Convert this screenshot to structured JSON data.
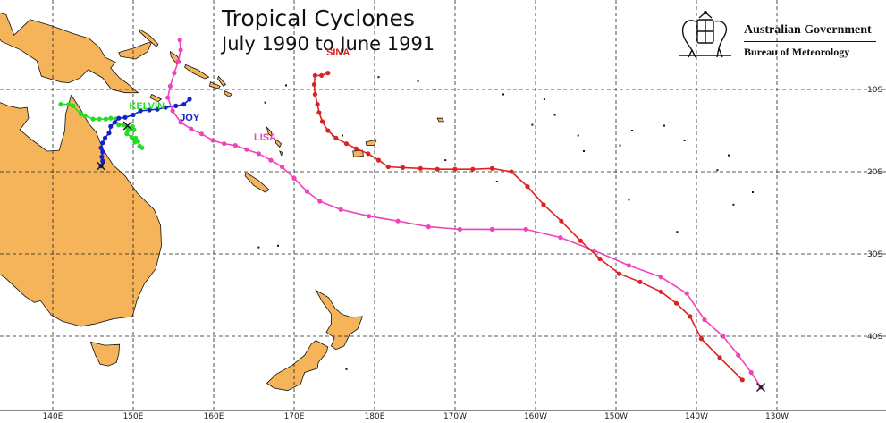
{
  "title": {
    "main": "Tropical Cyclones",
    "sub": "July 1990 to June 1991"
  },
  "logo": {
    "line1": "Australian Government",
    "line2": "Bureau of Meteorology"
  },
  "map": {
    "lon_range": [
      135,
      228
    ],
    "lat_range": [
      -48,
      -1
    ],
    "land_color": "#f5b35a",
    "grid_style": "dashed",
    "lat_labels": [
      {
        "lat": -10,
        "label": "10S"
      },
      {
        "lat": -20,
        "label": "20S"
      },
      {
        "lat": -30,
        "label": "30S"
      },
      {
        "lat": -40,
        "label": "40S"
      }
    ],
    "lon_labels": [
      {
        "lon": 140,
        "label": "140E"
      },
      {
        "lon": 150,
        "label": "150E"
      },
      {
        "lon": 160,
        "label": "160E"
      },
      {
        "lon": 170,
        "label": "170E"
      },
      {
        "lon": 180,
        "label": "180E"
      },
      {
        "lon": 190,
        "label": "170W"
      },
      {
        "lon": 200,
        "label": "160W"
      },
      {
        "lon": 210,
        "label": "150W"
      },
      {
        "lon": 220,
        "label": "140W"
      },
      {
        "lon": 230,
        "label": "130W"
      }
    ]
  },
  "cyclones": [
    {
      "name": "KELVIN",
      "color": "#22dd22",
      "label_pos": [
        149.5,
        -12.2
      ],
      "dissipation": null,
      "track": [
        [
          141.0,
          -11.8
        ],
        [
          142.0,
          -11.8
        ],
        [
          142.5,
          -12.0
        ],
        [
          143.5,
          -13.0
        ],
        [
          144.0,
          -13.2
        ],
        [
          145.0,
          -13.6
        ],
        [
          145.8,
          -13.6
        ],
        [
          146.6,
          -13.6
        ],
        [
          147.2,
          -13.5
        ],
        [
          147.8,
          -13.6
        ],
        [
          148.2,
          -14.3
        ],
        [
          148.8,
          -14.3
        ],
        [
          149.3,
          -14.6
        ],
        [
          149.9,
          -14.5
        ],
        [
          150.1,
          -14.9
        ],
        [
          149.3,
          -15.0
        ],
        [
          149.2,
          -15.4
        ],
        [
          149.8,
          -15.8
        ],
        [
          150.3,
          -15.9
        ],
        [
          150.2,
          -16.4
        ],
        [
          150.6,
          -16.3
        ],
        [
          150.8,
          -16.9
        ],
        [
          151.1,
          -17.1
        ]
      ]
    },
    {
      "name": "JOY",
      "color": "#1122cc",
      "label_pos": [
        155.8,
        -13.6
      ],
      "dissipation": [
        146.0,
        -19.3
      ],
      "track": [
        [
          157.0,
          -11.2
        ],
        [
          156.3,
          -11.8
        ],
        [
          155.3,
          -12.0
        ],
        [
          154.0,
          -12.2
        ],
        [
          153.0,
          -12.4
        ],
        [
          152.0,
          -12.5
        ],
        [
          150.9,
          -12.6
        ],
        [
          150.0,
          -13.1
        ],
        [
          149.0,
          -13.4
        ],
        [
          148.2,
          -13.5
        ],
        [
          147.7,
          -14.0
        ],
        [
          147.2,
          -14.5
        ],
        [
          147.0,
          -15.3
        ],
        [
          146.5,
          -15.9
        ],
        [
          146.2,
          -16.5
        ],
        [
          146.0,
          -17.1
        ],
        [
          146.2,
          -17.6
        ],
        [
          146.1,
          -18.2
        ],
        [
          146.2,
          -18.7
        ],
        [
          146.0,
          -19.3
        ]
      ]
    },
    {
      "name": "LISA",
      "color": "#ee44bb",
      "label_pos": [
        165.0,
        -16.0
      ],
      "dissipation": [
        228.0,
        -46.2
      ],
      "track": [
        [
          155.8,
          -4.0
        ],
        [
          155.9,
          -5.2
        ],
        [
          155.6,
          -6.6
        ],
        [
          155.1,
          -8.0
        ],
        [
          154.6,
          -9.6
        ],
        [
          154.3,
          -11.0
        ],
        [
          154.9,
          -12.6
        ],
        [
          155.9,
          -14.0
        ],
        [
          157.2,
          -14.8
        ],
        [
          158.5,
          -15.4
        ],
        [
          159.9,
          -16.2
        ],
        [
          161.3,
          -16.6
        ],
        [
          162.7,
          -16.8
        ],
        [
          164.1,
          -17.3
        ],
        [
          165.6,
          -17.8
        ],
        [
          167.1,
          -18.6
        ],
        [
          168.5,
          -19.4
        ],
        [
          170.0,
          -20.8
        ],
        [
          171.6,
          -22.4
        ],
        [
          173.2,
          -23.6
        ],
        [
          175.8,
          -24.6
        ],
        [
          179.3,
          -25.4
        ],
        [
          182.9,
          -26.0
        ],
        [
          186.7,
          -26.7
        ],
        [
          190.6,
          -27.0
        ],
        [
          194.6,
          -27.0
        ],
        [
          198.8,
          -27.0
        ],
        [
          203.1,
          -28.0
        ],
        [
          207.3,
          -29.6
        ],
        [
          211.6,
          -31.4
        ],
        [
          215.6,
          -32.8
        ],
        [
          218.8,
          -34.8
        ],
        [
          221.0,
          -38.0
        ],
        [
          223.3,
          -40.0
        ],
        [
          225.2,
          -42.3
        ],
        [
          226.8,
          -44.4
        ],
        [
          228.0,
          -46.2
        ]
      ]
    },
    {
      "name": "SINA",
      "color": "#dd2222",
      "label_pos": [
        174.0,
        -5.6
      ],
      "dissipation": null,
      "track": [
        [
          174.2,
          -8.0
        ],
        [
          173.4,
          -8.3
        ],
        [
          172.6,
          -8.3
        ],
        [
          172.5,
          -9.4
        ],
        [
          172.6,
          -10.6
        ],
        [
          172.9,
          -11.8
        ],
        [
          173.1,
          -12.8
        ],
        [
          173.5,
          -13.9
        ],
        [
          174.2,
          -15.0
        ],
        [
          175.2,
          -15.9
        ],
        [
          176.5,
          -16.6
        ],
        [
          177.7,
          -17.2
        ],
        [
          179.2,
          -17.8
        ],
        [
          180.5,
          -18.6
        ],
        [
          181.7,
          -19.4
        ],
        [
          183.5,
          -19.5
        ],
        [
          185.7,
          -19.6
        ],
        [
          187.8,
          -19.7
        ],
        [
          190.0,
          -19.7
        ],
        [
          192.2,
          -19.7
        ],
        [
          194.6,
          -19.6
        ],
        [
          197.0,
          -20.0
        ],
        [
          199.0,
          -21.8
        ],
        [
          201.0,
          -24.0
        ],
        [
          203.2,
          -26.0
        ],
        [
          205.6,
          -28.4
        ],
        [
          208.0,
          -30.6
        ],
        [
          210.4,
          -32.4
        ],
        [
          213.0,
          -33.4
        ],
        [
          215.6,
          -34.6
        ],
        [
          217.5,
          -36.0
        ],
        [
          219.2,
          -37.6
        ],
        [
          220.6,
          -40.3
        ],
        [
          222.9,
          -42.6
        ],
        [
          225.7,
          -45.3
        ]
      ]
    }
  ]
}
